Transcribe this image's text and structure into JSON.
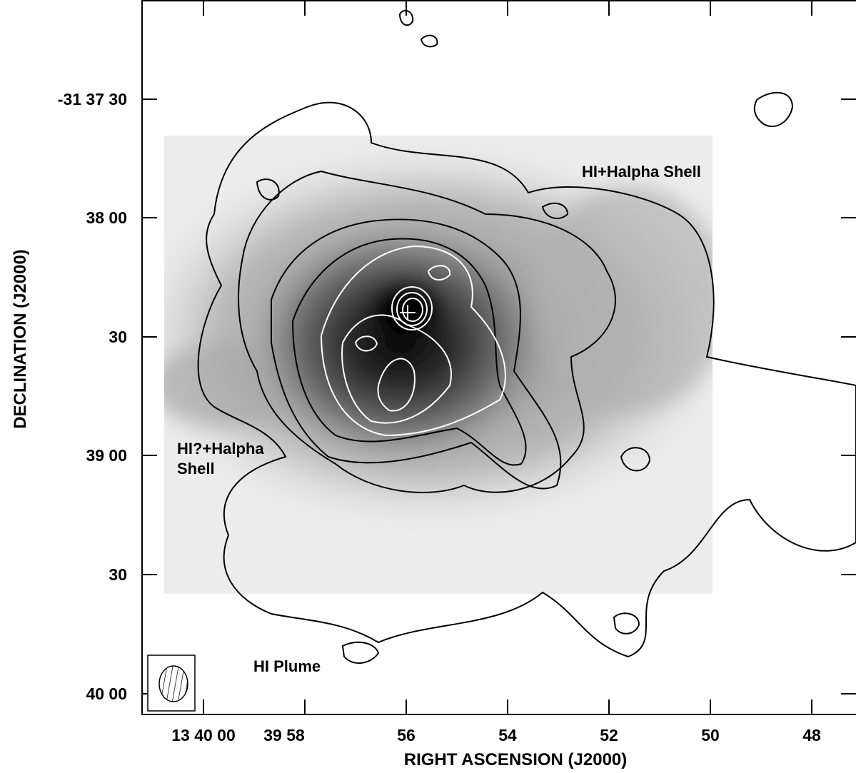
{
  "figure": {
    "x_axis_label": "RIGHT ASCENSION (J2000)",
    "y_axis_label": "DECLINATION (J2000)",
    "x_ticks": [
      "13 40 00",
      "39 58",
      "56",
      "54",
      "52",
      "50",
      "48"
    ],
    "y_ticks": [
      "-31 37 30",
      "38 00",
      "30",
      "39 00",
      "30",
      "40 00"
    ],
    "annotations": [
      "HI+Halpha Shell",
      "HI?+Halpha",
      "Shell",
      "HI Plume"
    ]
  }
}
